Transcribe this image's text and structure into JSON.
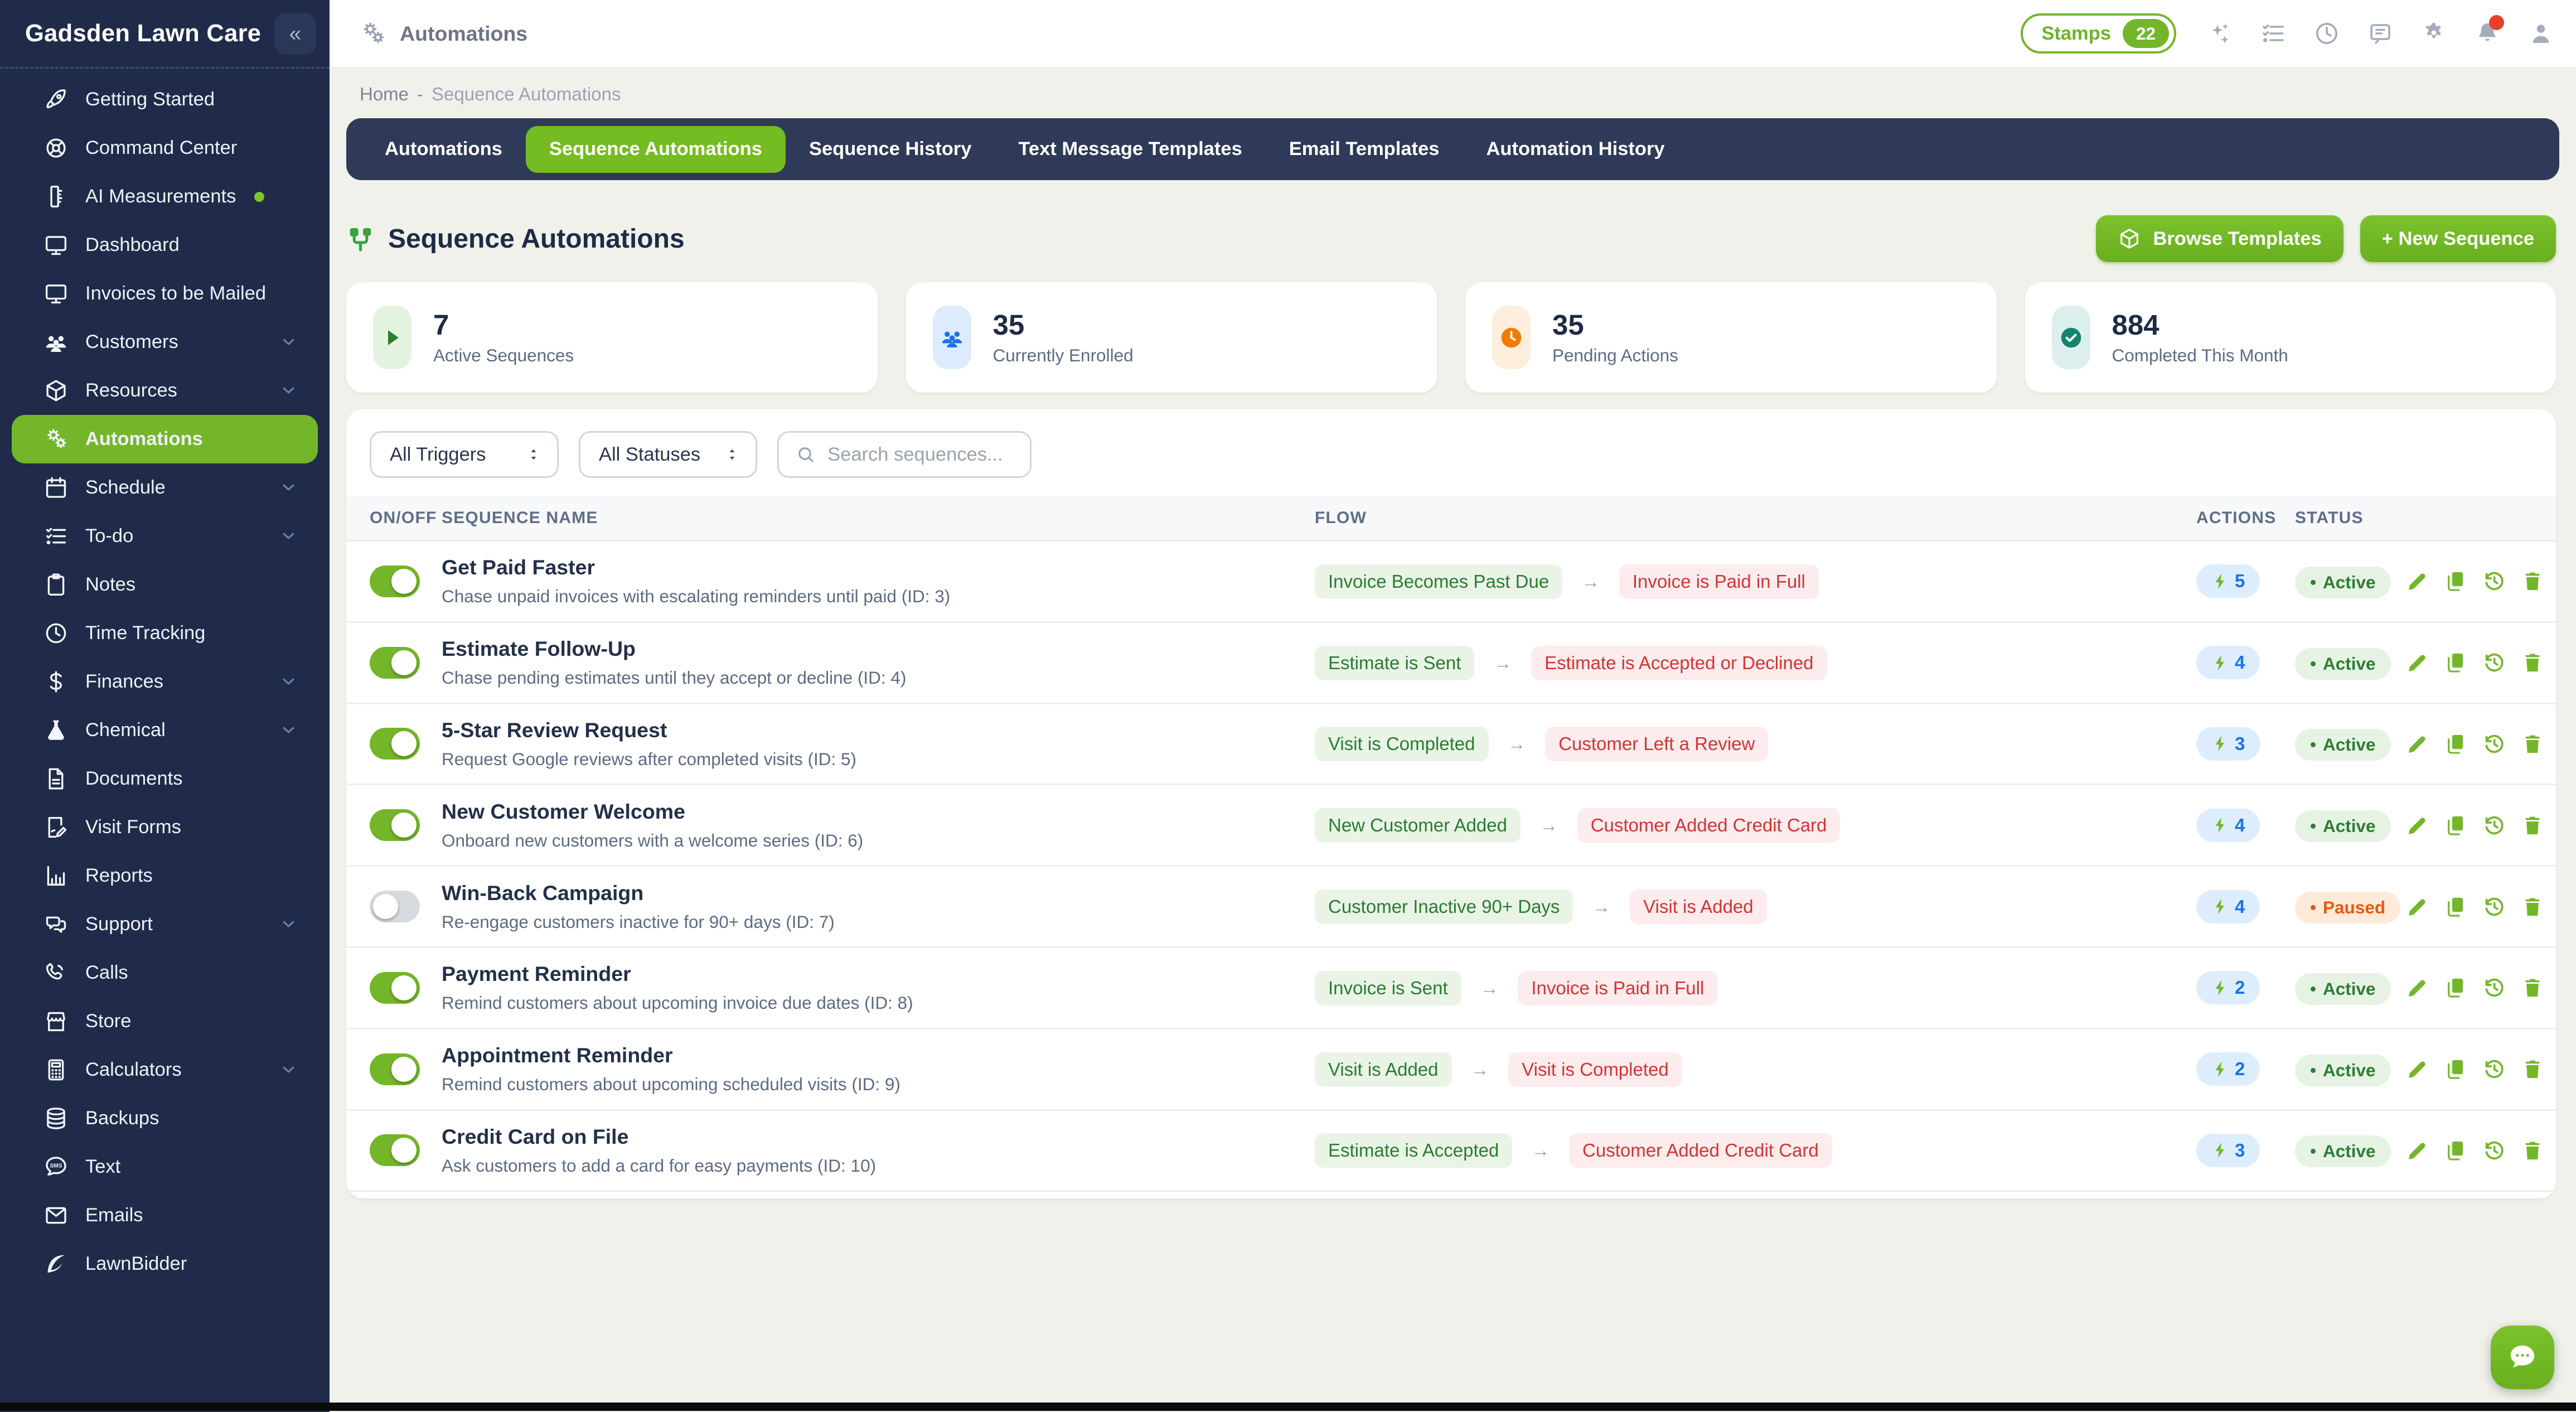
{
  "colors": {
    "accent_green": "#74b62a",
    "sidebar_navy": "#1f2b49",
    "tabbar_navy": "#2e3a57",
    "status_active": "#2f7d33",
    "status_paused": "#e8590c",
    "trigger_chip_text": "#2a7c31",
    "goal_chip_text": "#d23434",
    "actions_count_blue": "#1a73e8"
  },
  "sidebar": {
    "title": "Gadsden Lawn Care",
    "collapse_glyph": "«",
    "items": [
      {
        "label": "Getting Started",
        "icon": "rocket"
      },
      {
        "label": "Command Center",
        "icon": "target"
      },
      {
        "label": "AI Measurements",
        "icon": "ruler",
        "dot": true
      },
      {
        "label": "Dashboard",
        "icon": "monitor"
      },
      {
        "label": "Invoices to be Mailed",
        "icon": "monitor"
      },
      {
        "label": "Customers",
        "icon": "users",
        "chevron": true
      },
      {
        "label": "Resources",
        "icon": "box",
        "chevron": true
      },
      {
        "label": "Automations",
        "icon": "gears",
        "active": true
      },
      {
        "label": "Schedule",
        "icon": "calendar",
        "chevron": true
      },
      {
        "label": "To-do",
        "icon": "checklist",
        "chevron": true
      },
      {
        "label": "Notes",
        "icon": "clipboard"
      },
      {
        "label": "Time Tracking",
        "icon": "clock"
      },
      {
        "label": "Finances",
        "icon": "dollar",
        "chevron": true
      },
      {
        "label": "Chemical",
        "icon": "flask",
        "chevron": true
      },
      {
        "label": "Documents",
        "icon": "file"
      },
      {
        "label": "Visit Forms",
        "icon": "form"
      },
      {
        "label": "Reports",
        "icon": "chart"
      },
      {
        "label": "Support",
        "icon": "chats",
        "chevron": true
      },
      {
        "label": "Calls",
        "icon": "phone"
      },
      {
        "label": "Store",
        "icon": "store"
      },
      {
        "label": "Calculators",
        "icon": "calculator",
        "chevron": true
      },
      {
        "label": "Backups",
        "icon": "database"
      },
      {
        "label": "Text",
        "icon": "sms"
      },
      {
        "label": "Emails",
        "icon": "mail"
      },
      {
        "label": "LawnBidder",
        "icon": "leaf"
      }
    ]
  },
  "topbar": {
    "title": "Automations",
    "stamps_label": "Stamps",
    "stamps_count": "22",
    "icons": [
      {
        "icon": "sparkles"
      },
      {
        "icon": "checklist"
      },
      {
        "icon": "clock"
      },
      {
        "icon": "comment"
      },
      {
        "icon": "gear"
      },
      {
        "icon": "bell",
        "badge": true
      },
      {
        "icon": "person"
      }
    ]
  },
  "breadcrumb": {
    "home": "Home",
    "separator": "-",
    "current": "Sequence Automations"
  },
  "tabs": [
    {
      "label": "Automations"
    },
    {
      "label": "Sequence Automations",
      "active": true
    },
    {
      "label": "Sequence History"
    },
    {
      "label": "Text Message Templates"
    },
    {
      "label": "Email Templates"
    },
    {
      "label": "Automation History"
    }
  ],
  "page": {
    "title": "Sequence Automations",
    "browse_templates_label": "Browse Templates",
    "new_sequence_label": "+ New Sequence"
  },
  "stats": [
    {
      "value": "7",
      "label": "Active Sequences",
      "icon": "play",
      "icon_color": "#2e7d32",
      "icon_bg": "#e4f3df"
    },
    {
      "value": "35",
      "label": "Currently Enrolled",
      "icon": "users",
      "icon_color": "#1a73e8",
      "icon_bg": "#dcecfc"
    },
    {
      "value": "35",
      "label": "Pending Actions",
      "icon": "clock-badge",
      "icon_color": "#f07c00",
      "icon_bg": "#fdeedd"
    },
    {
      "value": "884",
      "label": "Completed This Month",
      "icon": "check-badge",
      "icon_color": "#12866c",
      "icon_bg": "#dcefec"
    }
  ],
  "filters": {
    "trigger": "All Triggers",
    "status": "All Statuses",
    "search_placeholder": "Search sequences..."
  },
  "table": {
    "columns": [
      "ON/OFF",
      "SEQUENCE NAME",
      "FLOW",
      "ACTIONS",
      "STATUS"
    ],
    "rows": [
      {
        "enabled": true,
        "name": "Get Paid Faster",
        "description": "Chase unpaid invoices with escalating reminders until paid (ID: 3)",
        "trigger": "Invoice Becomes Past Due",
        "goal": "Invoice is Paid in Full",
        "actions": "5",
        "status": "Active"
      },
      {
        "enabled": true,
        "name": "Estimate Follow-Up",
        "description": "Chase pending estimates until they accept or decline (ID: 4)",
        "trigger": "Estimate is Sent",
        "goal": "Estimate is Accepted or Declined",
        "actions": "4",
        "status": "Active"
      },
      {
        "enabled": true,
        "name": "5-Star Review Request",
        "description": "Request Google reviews after completed visits (ID: 5)",
        "trigger": "Visit is Completed",
        "goal": "Customer Left a Review",
        "actions": "3",
        "status": "Active"
      },
      {
        "enabled": true,
        "name": "New Customer Welcome",
        "description": "Onboard new customers with a welcome series (ID: 6)",
        "trigger": "New Customer Added",
        "goal": "Customer Added Credit Card",
        "actions": "4",
        "status": "Active"
      },
      {
        "enabled": false,
        "name": "Win-Back Campaign",
        "description": "Re-engage customers inactive for 90+ days (ID: 7)",
        "trigger": "Customer Inactive 90+ Days",
        "goal": "Visit is Added",
        "actions": "4",
        "status": "Paused"
      },
      {
        "enabled": true,
        "name": "Payment Reminder",
        "description": "Remind customers about upcoming invoice due dates (ID: 8)",
        "trigger": "Invoice is Sent",
        "goal": "Invoice is Paid in Full",
        "actions": "2",
        "status": "Active"
      },
      {
        "enabled": true,
        "name": "Appointment Reminder",
        "description": "Remind customers about upcoming scheduled visits (ID: 9)",
        "trigger": "Visit is Added",
        "goal": "Visit is Completed",
        "actions": "2",
        "status": "Active"
      },
      {
        "enabled": true,
        "name": "Credit Card on File",
        "description": "Ask customers to add a card for easy payments (ID: 10)",
        "trigger": "Estimate is Accepted",
        "goal": "Customer Added Credit Card",
        "actions": "3",
        "status": "Active"
      }
    ]
  }
}
